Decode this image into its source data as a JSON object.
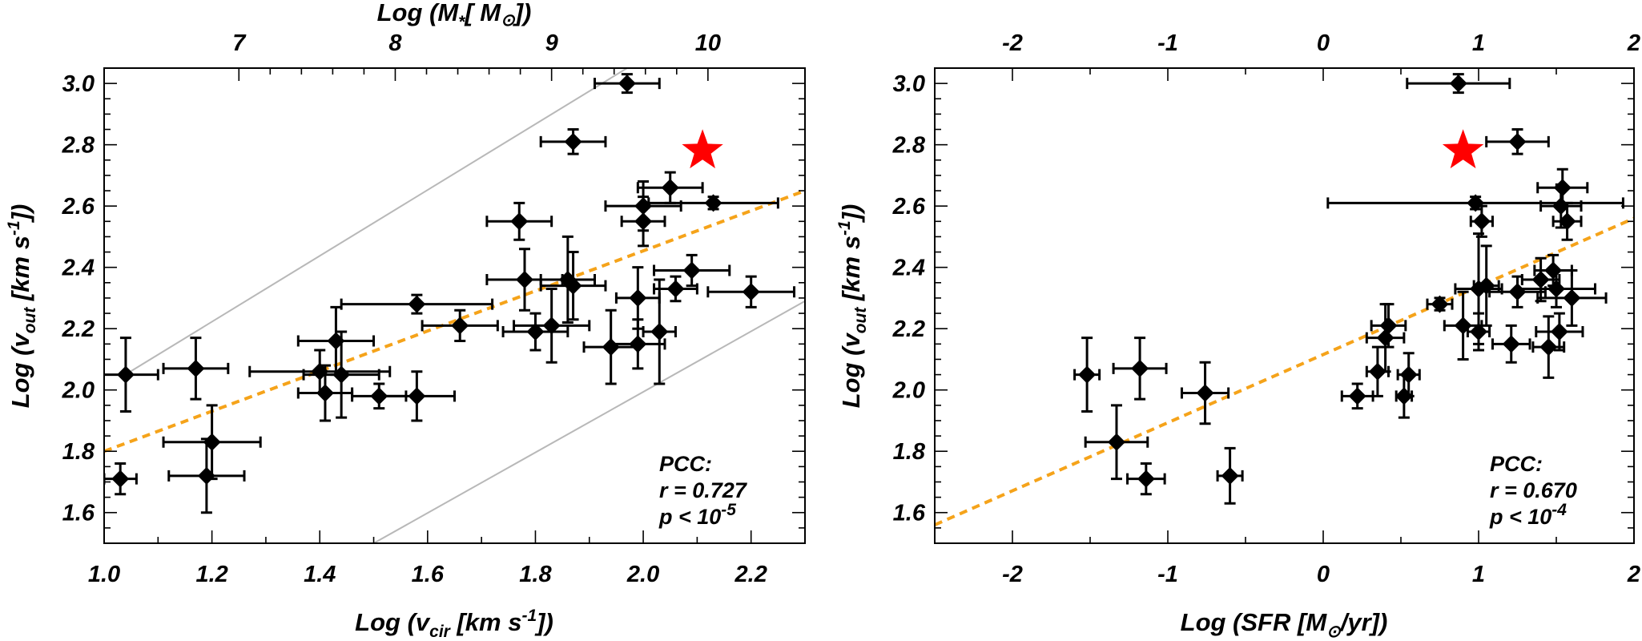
{
  "chart_data": [
    {
      "type": "scatter",
      "id": "left",
      "xlabel": {
        "pre": "Log (v",
        "sub": "cir",
        "post": " [km s",
        "sup": "-1",
        "end": "])"
      },
      "ylabel": {
        "pre": "Log (v",
        "sub": "out",
        "post": " [km s",
        "sup": "-1",
        "end": "])"
      },
      "toplabel": {
        "pre": "Log (M",
        "sub": "*",
        "post": "[ M",
        "sub2": "⊙",
        "end": "])"
      },
      "xlim": [
        1.0,
        2.3
      ],
      "ylim": [
        1.5,
        3.05
      ],
      "xticks": [
        1.0,
        1.2,
        1.4,
        1.6,
        1.8,
        2.0,
        2.2
      ],
      "xtick_labels": [
        "1.0",
        "1.2",
        "1.4",
        "1.6",
        "1.8",
        "2.0",
        "2.2"
      ],
      "yticks": [
        1.6,
        1.8,
        2.0,
        2.2,
        2.4,
        2.6,
        2.8,
        3.0
      ],
      "ytick_labels": [
        "1.6",
        "1.8",
        "2.0",
        "2.2",
        "2.4",
        "2.6",
        "2.8",
        "3.0"
      ],
      "top_ticks_x": [
        1.25,
        1.54,
        1.83,
        2.12
      ],
      "top_tick_labels": [
        "7",
        "8",
        "9",
        "10"
      ],
      "points": [
        {
          "x": 1.03,
          "y": 1.71,
          "xerr": 0.03,
          "yerr": 0.05
        },
        {
          "x": 1.19,
          "y": 1.72,
          "xerr": 0.07,
          "yerr": 0.12
        },
        {
          "x": 1.2,
          "y": 1.83,
          "xerr": 0.09,
          "yerr": 0.12
        },
        {
          "x": 1.04,
          "y": 2.05,
          "xerr": 0.06,
          "yerr": 0.12
        },
        {
          "x": 1.17,
          "y": 2.07,
          "xerr": 0.06,
          "yerr": 0.1
        },
        {
          "x": 1.4,
          "y": 2.06,
          "xerr": 0.13,
          "yerr": 0.07
        },
        {
          "x": 1.41,
          "y": 1.99,
          "xerr": 0.05,
          "yerr": 0.09
        },
        {
          "x": 1.43,
          "y": 2.16,
          "xerr": 0.07,
          "yerr": 0.11
        },
        {
          "x": 1.44,
          "y": 2.05,
          "xerr": 0.07,
          "yerr": 0.14
        },
        {
          "x": 1.51,
          "y": 1.98,
          "xerr": 0.05,
          "yerr": 0.04
        },
        {
          "x": 1.58,
          "y": 1.98,
          "xerr": 0.07,
          "yerr": 0.08
        },
        {
          "x": 1.58,
          "y": 2.28,
          "xerr": 0.14,
          "yerr": 0.03
        },
        {
          "x": 1.66,
          "y": 2.21,
          "xerr": 0.07,
          "yerr": 0.05
        },
        {
          "x": 1.77,
          "y": 2.55,
          "xerr": 0.06,
          "yerr": 0.06
        },
        {
          "x": 1.78,
          "y": 2.36,
          "xerr": 0.07,
          "yerr": 0.1
        },
        {
          "x": 1.8,
          "y": 2.19,
          "xerr": 0.06,
          "yerr": 0.06
        },
        {
          "x": 1.83,
          "y": 2.21,
          "xerr": 0.07,
          "yerr": 0.12
        },
        {
          "x": 1.86,
          "y": 2.36,
          "xerr": 0.05,
          "yerr": 0.14
        },
        {
          "x": 1.87,
          "y": 2.34,
          "xerr": 0.06,
          "yerr": 0.11
        },
        {
          "x": 1.87,
          "y": 2.81,
          "xerr": 0.06,
          "yerr": 0.04
        },
        {
          "x": 1.94,
          "y": 2.14,
          "xerr": 0.05,
          "yerr": 0.12
        },
        {
          "x": 1.97,
          "y": 3.0,
          "xerr": 0.06,
          "yerr": 0.03
        },
        {
          "x": 1.99,
          "y": 2.15,
          "xerr": 0.05,
          "yerr": 0.08
        },
        {
          "x": 1.99,
          "y": 2.3,
          "xerr": 0.04,
          "yerr": 0.1
        },
        {
          "x": 2.0,
          "y": 2.55,
          "xerr": 0.04,
          "yerr": 0.08
        },
        {
          "x": 2.0,
          "y": 2.6,
          "xerr": 0.07,
          "yerr": 0.08
        },
        {
          "x": 2.03,
          "y": 2.19,
          "xerr": 0.03,
          "yerr": 0.17
        },
        {
          "x": 2.05,
          "y": 2.66,
          "xerr": 0.06,
          "yerr": 0.05
        },
        {
          "x": 2.06,
          "y": 2.33,
          "xerr": 0.04,
          "yerr": 0.04
        },
        {
          "x": 2.09,
          "y": 2.39,
          "xerr": 0.07,
          "yerr": 0.05
        },
        {
          "x": 2.13,
          "y": 2.61,
          "xerr": 0.12,
          "yerr": 0.02
        },
        {
          "x": 2.2,
          "y": 2.32,
          "xerr": 0.08,
          "yerr": 0.05
        }
      ],
      "star": {
        "x": 2.11,
        "y": 2.78
      },
      "fit_line": {
        "x": [
          1.0,
          2.3
        ],
        "y": [
          1.8,
          2.65
        ]
      },
      "guide_lines": [
        {
          "x": [
            1.03,
            1.97
          ],
          "y": [
            2.04,
            3.05
          ]
        },
        {
          "x": [
            1.5,
            2.3
          ],
          "y": [
            1.5,
            2.29
          ]
        }
      ],
      "annotation": [
        "PCC:",
        "r = 0.727",
        "p < 10",
        "-5"
      ],
      "colors": {
        "fit": "#f5a31a",
        "star": "#ff0000",
        "guide": "#b8b8b8"
      }
    },
    {
      "type": "scatter",
      "id": "right",
      "xlabel": {
        "pre": "Log (SFR [M",
        "sub": "⊙",
        "post": "/yr])"
      },
      "ylabel": {
        "pre": "Log (v",
        "sub": "out",
        "post": " [km s",
        "sup": "-1",
        "end": "])"
      },
      "xlim": [
        -2.5,
        2.0
      ],
      "ylim": [
        1.5,
        3.05
      ],
      "xticks": [
        -2,
        -1,
        0,
        1,
        2
      ],
      "xtick_labels": [
        "-2",
        "-1",
        "0",
        "1",
        "2"
      ],
      "yticks": [
        1.6,
        1.8,
        2.0,
        2.2,
        2.4,
        2.6,
        2.8,
        3.0
      ],
      "ytick_labels": [
        "1.6",
        "1.8",
        "2.0",
        "2.2",
        "2.4",
        "2.6",
        "2.8",
        "3.0"
      ],
      "top_tick_labels": [
        "-2",
        "-1",
        "0",
        "1",
        "2"
      ],
      "points": [
        {
          "x": -1.52,
          "y": 2.05,
          "xerr": 0.08,
          "yerr": 0.12
        },
        {
          "x": -1.33,
          "y": 1.83,
          "xerr": 0.2,
          "yerr": 0.12
        },
        {
          "x": -1.18,
          "y": 2.07,
          "xerr": 0.17,
          "yerr": 0.1
        },
        {
          "x": -1.14,
          "y": 1.71,
          "xerr": 0.12,
          "yerr": 0.05
        },
        {
          "x": -0.76,
          "y": 1.99,
          "xerr": 0.15,
          "yerr": 0.1
        },
        {
          "x": -0.6,
          "y": 1.72,
          "xerr": 0.08,
          "yerr": 0.09
        },
        {
          "x": 0.22,
          "y": 1.98,
          "xerr": 0.1,
          "yerr": 0.04
        },
        {
          "x": 0.35,
          "y": 2.06,
          "xerr": 0.07,
          "yerr": 0.08
        },
        {
          "x": 0.4,
          "y": 2.17,
          "xerr": 0.12,
          "yerr": 0.11
        },
        {
          "x": 0.42,
          "y": 2.21,
          "xerr": 0.11,
          "yerr": 0.07
        },
        {
          "x": 0.52,
          "y": 1.98,
          "xerr": 0.05,
          "yerr": 0.07
        },
        {
          "x": 0.55,
          "y": 2.05,
          "xerr": 0.07,
          "yerr": 0.07
        },
        {
          "x": 0.75,
          "y": 2.28,
          "xerr": 0.08,
          "yerr": 0.02
        },
        {
          "x": 0.87,
          "y": 3.0,
          "xerr": 0.33,
          "yerr": 0.03
        },
        {
          "x": 0.9,
          "y": 2.21,
          "xerr": 0.12,
          "yerr": 0.11
        },
        {
          "x": 0.98,
          "y": 2.61,
          "xerr": 0.95,
          "yerr": 0.02
        },
        {
          "x": 1.0,
          "y": 2.33,
          "xerr": 0.15,
          "yerr": 0.18
        },
        {
          "x": 1.0,
          "y": 2.19,
          "xerr": 0.07,
          "yerr": 0.06
        },
        {
          "x": 1.02,
          "y": 2.55,
          "xerr": 0.07,
          "yerr": 0.05
        },
        {
          "x": 1.05,
          "y": 2.34,
          "xerr": 0.08,
          "yerr": 0.13
        },
        {
          "x": 1.21,
          "y": 2.15,
          "xerr": 0.12,
          "yerr": 0.06
        },
        {
          "x": 1.25,
          "y": 2.81,
          "xerr": 0.2,
          "yerr": 0.04
        },
        {
          "x": 1.25,
          "y": 2.32,
          "xerr": 0.18,
          "yerr": 0.05
        },
        {
          "x": 1.4,
          "y": 2.36,
          "xerr": 0.12,
          "yerr": 0.07
        },
        {
          "x": 1.45,
          "y": 2.14,
          "xerr": 0.1,
          "yerr": 0.1
        },
        {
          "x": 1.48,
          "y": 2.39,
          "xerr": 0.12,
          "yerr": 0.05
        },
        {
          "x": 1.5,
          "y": 2.33,
          "xerr": 0.25,
          "yerr": 0.06
        },
        {
          "x": 1.52,
          "y": 2.19,
          "xerr": 0.15,
          "yerr": 0.06
        },
        {
          "x": 1.53,
          "y": 2.6,
          "xerr": 0.13,
          "yerr": 0.07
        },
        {
          "x": 1.54,
          "y": 2.66,
          "xerr": 0.16,
          "yerr": 0.06
        },
        {
          "x": 1.57,
          "y": 2.55,
          "xerr": 0.09,
          "yerr": 0.06
        },
        {
          "x": 1.6,
          "y": 2.3,
          "xerr": 0.22,
          "yerr": 0.09
        }
      ],
      "star": {
        "x": 0.9,
        "y": 2.78
      },
      "fit_line": {
        "x": [
          -2.5,
          2.0
        ],
        "y": [
          1.56,
          2.56
        ]
      },
      "annotation": [
        "PCC:",
        "r = 0.670",
        "p < 10",
        "-4"
      ],
      "colors": {
        "fit": "#f5a31a",
        "star": "#ff0000"
      }
    }
  ]
}
